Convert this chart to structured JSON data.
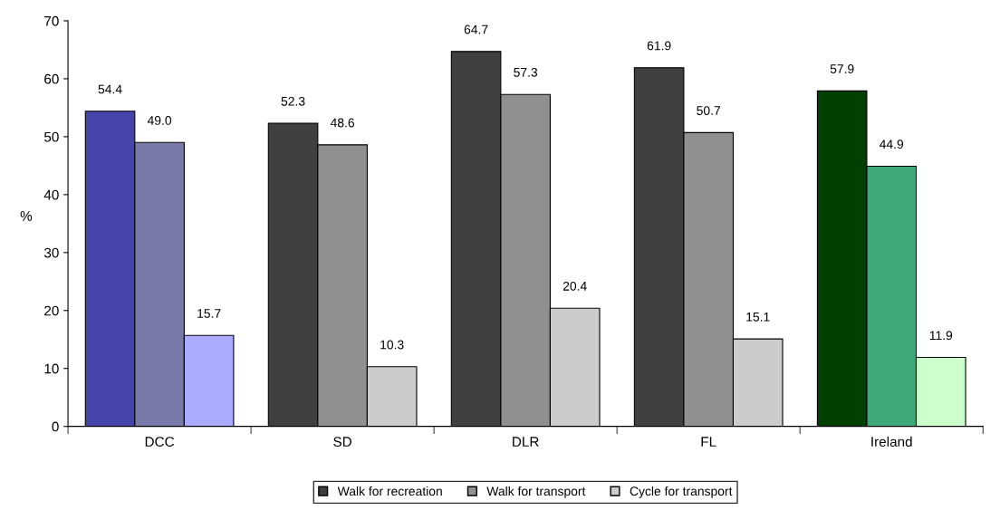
{
  "chart_data": {
    "type": "bar",
    "ylabel": "%",
    "categories": [
      "DCC",
      "SD",
      "DLR",
      "FL",
      "Ireland"
    ],
    "series": [
      {
        "name": "Walk for recreation",
        "color": "#404040",
        "colors": [
          "#4444aa",
          "#404040",
          "#404040",
          "#404040",
          "#004000"
        ],
        "values": [
          54.4,
          52.3,
          64.7,
          61.9,
          57.9
        ],
        "value_labels": [
          "54.4",
          "52.3",
          "64.7",
          "61.9",
          "57.9"
        ]
      },
      {
        "name": "Walk for transport",
        "color": "#909090",
        "colors": [
          "#7a7aaa",
          "#909090",
          "#909090",
          "#909090",
          "#3fa87a"
        ],
        "values": [
          49.0,
          48.6,
          57.3,
          50.7,
          44.9
        ],
        "value_labels": [
          "49.0",
          "48.6",
          "57.3",
          "50.7",
          "44.9"
        ]
      },
      {
        "name": "Cycle for transport",
        "color": "#cccccc",
        "colors": [
          "#aaaaff",
          "#cccccc",
          "#cccccc",
          "#cccccc",
          "#ccffcc"
        ],
        "values": [
          15.7,
          10.3,
          20.4,
          15.1,
          11.9
        ],
        "value_labels": [
          "15.7",
          "10.3",
          "20.4",
          "15.1",
          "11.9"
        ]
      }
    ],
    "ylim": [
      0,
      70
    ],
    "yticks": [
      0,
      10,
      20,
      30,
      40,
      50,
      60,
      70
    ],
    "grid": false,
    "legend": "bottom"
  }
}
